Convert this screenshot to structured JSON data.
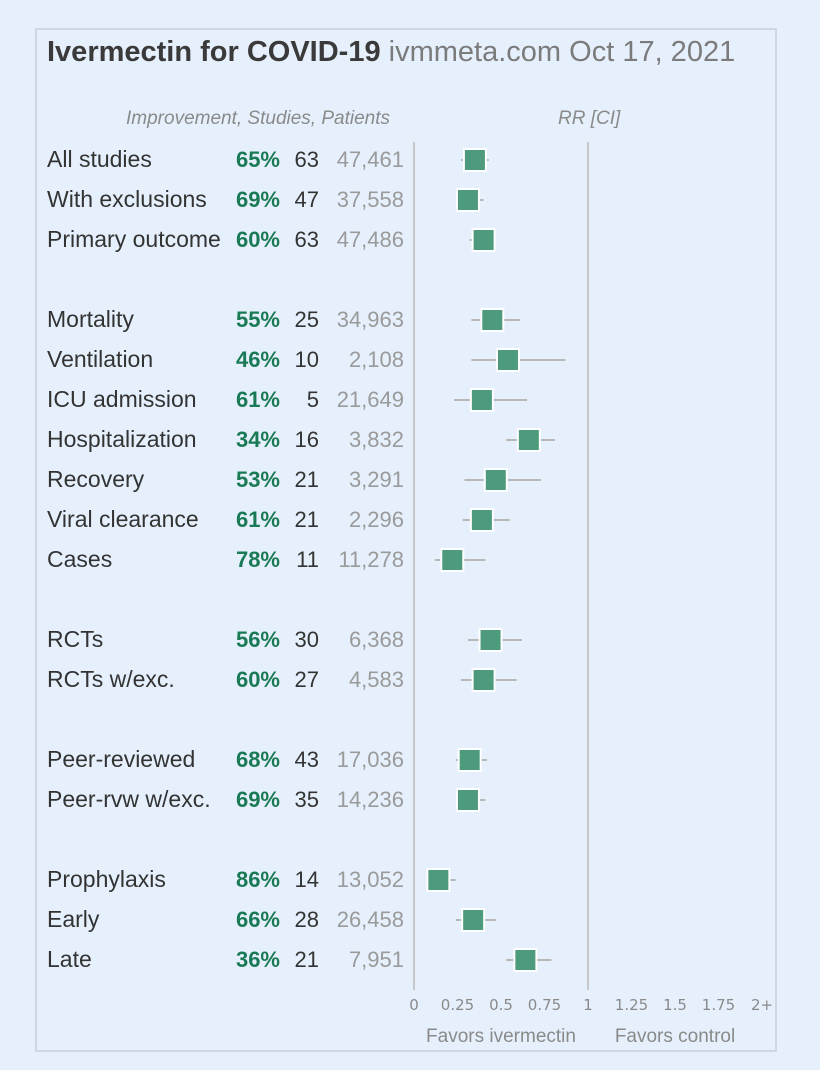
{
  "title": {
    "main": "Ivermectin for COVID-19",
    "sub": "ivmmeta.com Oct 17, 2021"
  },
  "headers": {
    "left": "Improvement, Studies, Patients",
    "right": "RR [CI]"
  },
  "colors": {
    "improvement": "#1a7a55",
    "marker": "#4d9a7c",
    "ci": "#b8b8b8",
    "label": "#333333",
    "patients": "#9a9a9a",
    "axis": "#c8c8c8"
  },
  "chart_data": {
    "type": "forest",
    "xlabel_left": "Favors ivermectin",
    "xlabel_right": "Favors control",
    "xlim": [
      0,
      2
    ],
    "ticks": [
      "0",
      "0.25",
      "0.5",
      "0.75",
      "1",
      "1.25",
      "1.5",
      "1.75",
      "2+"
    ],
    "rows": [
      {
        "label": "All studies",
        "improvement": "65%",
        "studies": "63",
        "patients": "47,461",
        "rr": 0.35,
        "ci": [
          0.27,
          0.43
        ],
        "group": 0
      },
      {
        "label": "With exclusions",
        "improvement": "69%",
        "studies": "47",
        "patients": "37,558",
        "rr": 0.31,
        "ci": [
          0.24,
          0.4
        ],
        "group": 0
      },
      {
        "label": "Primary outcome",
        "improvement": "60%",
        "studies": "63",
        "patients": "47,486",
        "rr": 0.4,
        "ci": [
          0.32,
          0.47
        ],
        "group": 0
      },
      {
        "label": "Mortality",
        "improvement": "55%",
        "studies": "25",
        "patients": "34,963",
        "rr": 0.45,
        "ci": [
          0.33,
          0.61
        ],
        "group": 1
      },
      {
        "label": "Ventilation",
        "improvement": "46%",
        "studies": "10",
        "patients": "2,108",
        "rr": 0.54,
        "ci": [
          0.33,
          0.87
        ],
        "group": 1
      },
      {
        "label": "ICU admission",
        "improvement": "61%",
        "studies": "5",
        "patients": "21,649",
        "rr": 0.39,
        "ci": [
          0.23,
          0.65
        ],
        "group": 1
      },
      {
        "label": "Hospitalization",
        "improvement": "34%",
        "studies": "16",
        "patients": "3,832",
        "rr": 0.66,
        "ci": [
          0.53,
          0.81
        ],
        "group": 1
      },
      {
        "label": "Recovery",
        "improvement": "53%",
        "studies": "21",
        "patients": "3,291",
        "rr": 0.47,
        "ci": [
          0.29,
          0.73
        ],
        "group": 1
      },
      {
        "label": "Viral clearance",
        "improvement": "61%",
        "studies": "21",
        "patients": "2,296",
        "rr": 0.39,
        "ci": [
          0.28,
          0.55
        ],
        "group": 1
      },
      {
        "label": "Cases",
        "improvement": "78%",
        "studies": "11",
        "patients": "11,278",
        "rr": 0.22,
        "ci": [
          0.12,
          0.41
        ],
        "group": 1
      },
      {
        "label": "RCTs",
        "improvement": "56%",
        "studies": "30",
        "patients": "6,368",
        "rr": 0.44,
        "ci": [
          0.31,
          0.62
        ],
        "group": 2
      },
      {
        "label": "RCTs w/exc.",
        "improvement": "60%",
        "studies": "27",
        "patients": "4,583",
        "rr": 0.4,
        "ci": [
          0.27,
          0.59
        ],
        "group": 2
      },
      {
        "label": "Peer-reviewed",
        "improvement": "68%",
        "studies": "43",
        "patients": "17,036",
        "rr": 0.32,
        "ci": [
          0.24,
          0.42
        ],
        "group": 3
      },
      {
        "label": "Peer-rvw w/exc.",
        "improvement": "69%",
        "studies": "35",
        "patients": "14,236",
        "rr": 0.31,
        "ci": [
          0.24,
          0.41
        ],
        "group": 3
      },
      {
        "label": "Prophylaxis",
        "improvement": "86%",
        "studies": "14",
        "patients": "13,052",
        "rr": 0.14,
        "ci": [
          0.08,
          0.24
        ],
        "group": 4
      },
      {
        "label": "Early",
        "improvement": "66%",
        "studies": "28",
        "patients": "26,458",
        "rr": 0.34,
        "ci": [
          0.24,
          0.47
        ],
        "group": 4
      },
      {
        "label": "Late",
        "improvement": "36%",
        "studies": "21",
        "patients": "7,951",
        "rr": 0.64,
        "ci": [
          0.53,
          0.79
        ],
        "group": 4
      }
    ]
  }
}
